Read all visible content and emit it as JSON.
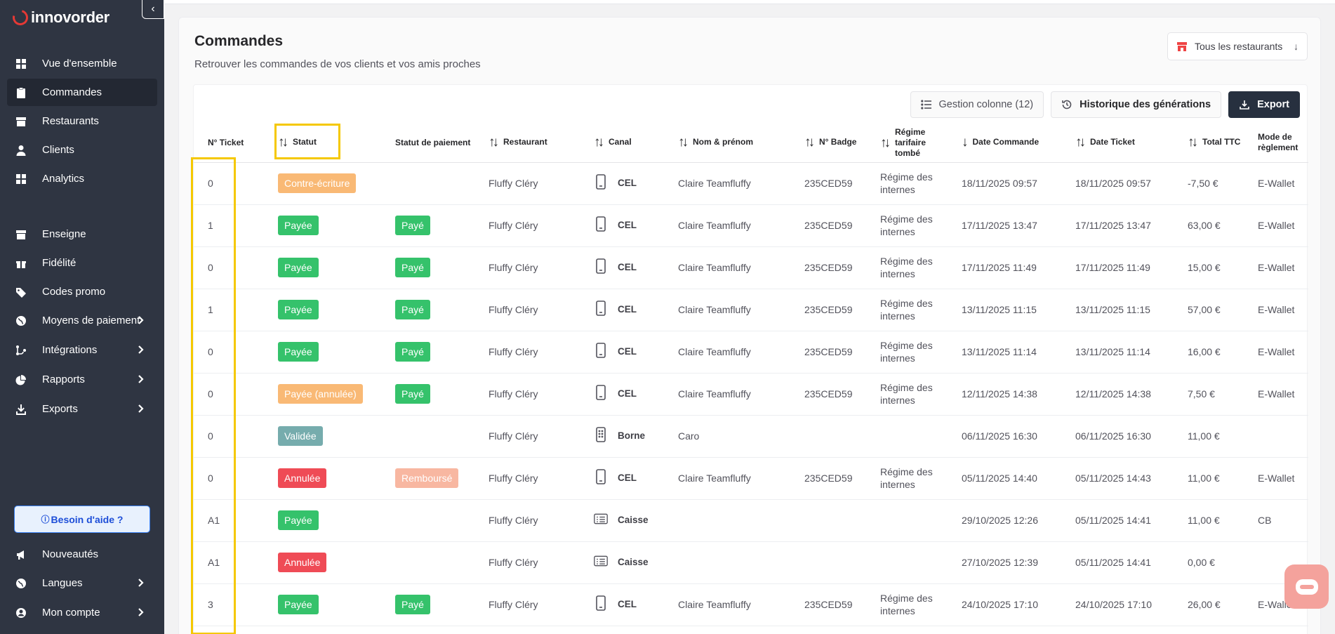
{
  "brand": {
    "name": "innovorder",
    "collapse_glyph": "‹"
  },
  "sidebar": {
    "items": [
      {
        "label": "Vue d'ensemble",
        "icon": "grid-icon",
        "active": false,
        "chevron": false
      },
      {
        "label": "Commandes",
        "icon": "clipboard-icon",
        "active": true,
        "chevron": false
      },
      {
        "label": "Restaurants",
        "icon": "store-icon",
        "active": false,
        "chevron": false
      },
      {
        "label": "Clients",
        "icon": "user-icon",
        "active": false,
        "chevron": false
      },
      {
        "label": "Analytics",
        "icon": "grid-icon",
        "active": false,
        "chevron": false
      },
      {
        "label": "Enseigne",
        "icon": "store-icon",
        "active": false,
        "chevron": false
      },
      {
        "label": "Fidélité",
        "icon": "gift-icon",
        "active": false,
        "chevron": false
      },
      {
        "label": "Codes promo",
        "icon": "tag-icon",
        "active": false,
        "chevron": false
      },
      {
        "label": "Moyens de paiement",
        "icon": "globe-icon",
        "active": false,
        "chevron": true
      },
      {
        "label": "Intégrations",
        "icon": "integration-icon",
        "active": false,
        "chevron": true
      },
      {
        "label": "Rapports",
        "icon": "pie-icon",
        "active": false,
        "chevron": true
      },
      {
        "label": "Exports",
        "icon": "download-icon",
        "active": false,
        "chevron": true
      }
    ],
    "help_label": "Besoin d'aide ?",
    "bottom_items": [
      {
        "label": "Nouveautés",
        "icon": "megaphone-icon",
        "chevron": false
      },
      {
        "label": "Langues",
        "icon": "globe-icon",
        "chevron": true
      },
      {
        "label": "Mon compte",
        "icon": "account-icon",
        "chevron": true
      }
    ]
  },
  "page": {
    "title": "Commandes",
    "subtitle": "Retrouver les commandes de vos clients et vos amis proches",
    "restaurant_filter": "Tous les restaurants"
  },
  "toolbar": {
    "columns_label": "Gestion colonne (12)",
    "history_label": "Historique des générations",
    "export_label": "Export"
  },
  "columns": [
    {
      "label": "N° Ticket",
      "sortable": false
    },
    {
      "label": "Statut",
      "sortable": true
    },
    {
      "label": "Statut de paiement",
      "sortable": false
    },
    {
      "label": "Restaurant",
      "sortable": true
    },
    {
      "label": "Canal",
      "sortable": true
    },
    {
      "label": "Nom & prénom",
      "sortable": true
    },
    {
      "label": "N° Badge",
      "sortable": true
    },
    {
      "label": "Régime tarifaire tombé",
      "sortable": true
    },
    {
      "label": "Date Commande",
      "sortable": "desc"
    },
    {
      "label": "Date Ticket",
      "sortable": true
    },
    {
      "label": "Total TTC",
      "sortable": true
    },
    {
      "label": "Mode de règlement",
      "sortable": false
    }
  ],
  "rows": [
    {
      "ticket": "0",
      "statut": "Contre-écriture",
      "statut_color": "orange",
      "paiement": "",
      "paiement_color": "",
      "restaurant": "Fluffy Cléry",
      "canal": "CEL",
      "canal_icon": "phone",
      "nom": "Claire Teamfluffy",
      "badge": "235CED59",
      "regime": "Régime des internes",
      "date_commande": "18/11/2025 09:57",
      "date_ticket": "18/11/2025 09:57",
      "total": "-7,50 €",
      "mode": "E-Wallet"
    },
    {
      "ticket": "1",
      "statut": "Payée",
      "statut_color": "green",
      "paiement": "Payé",
      "paiement_color": "green",
      "restaurant": "Fluffy Cléry",
      "canal": "CEL",
      "canal_icon": "phone",
      "nom": "Claire Teamfluffy",
      "badge": "235CED59",
      "regime": "Régime des internes",
      "date_commande": "17/11/2025 13:47",
      "date_ticket": "17/11/2025 13:47",
      "total": "63,00 €",
      "mode": "E-Wallet"
    },
    {
      "ticket": "0",
      "statut": "Payée",
      "statut_color": "green",
      "paiement": "Payé",
      "paiement_color": "green",
      "restaurant": "Fluffy Cléry",
      "canal": "CEL",
      "canal_icon": "phone",
      "nom": "Claire Teamfluffy",
      "badge": "235CED59",
      "regime": "Régime des internes",
      "date_commande": "17/11/2025 11:49",
      "date_ticket": "17/11/2025 11:49",
      "total": "15,00 €",
      "mode": "E-Wallet"
    },
    {
      "ticket": "1",
      "statut": "Payée",
      "statut_color": "green",
      "paiement": "Payé",
      "paiement_color": "green",
      "restaurant": "Fluffy Cléry",
      "canal": "CEL",
      "canal_icon": "phone",
      "nom": "Claire Teamfluffy",
      "badge": "235CED59",
      "regime": "Régime des internes",
      "date_commande": "13/11/2025 11:15",
      "date_ticket": "13/11/2025 11:15",
      "total": "57,00 €",
      "mode": "E-Wallet"
    },
    {
      "ticket": "0",
      "statut": "Payée",
      "statut_color": "green",
      "paiement": "Payé",
      "paiement_color": "green",
      "restaurant": "Fluffy Cléry",
      "canal": "CEL",
      "canal_icon": "phone",
      "nom": "Claire Teamfluffy",
      "badge": "235CED59",
      "regime": "Régime des internes",
      "date_commande": "13/11/2025 11:14",
      "date_ticket": "13/11/2025 11:14",
      "total": "16,00 €",
      "mode": "E-Wallet"
    },
    {
      "ticket": "0",
      "statut": "Payée (annulée)",
      "statut_color": "orange",
      "paiement": "Payé",
      "paiement_color": "green",
      "restaurant": "Fluffy Cléry",
      "canal": "CEL",
      "canal_icon": "phone",
      "nom": "Claire Teamfluffy",
      "badge": "235CED59",
      "regime": "Régime des internes",
      "date_commande": "12/11/2025 14:38",
      "date_ticket": "12/11/2025 14:38",
      "total": "7,50 €",
      "mode": "E-Wallet"
    },
    {
      "ticket": "0",
      "statut": "Validée",
      "statut_color": "teal",
      "paiement": "",
      "paiement_color": "",
      "restaurant": "Fluffy Cléry",
      "canal": "Borne",
      "canal_icon": "kiosk",
      "nom": "Caro",
      "badge": "",
      "regime": "",
      "date_commande": "06/11/2025 16:30",
      "date_ticket": "06/11/2025 16:30",
      "total": "11,00 €",
      "mode": ""
    },
    {
      "ticket": "0",
      "statut": "Annulée",
      "statut_color": "red",
      "paiement": "Remboursé",
      "paiement_color": "salmon",
      "restaurant": "Fluffy Cléry",
      "canal": "CEL",
      "canal_icon": "phone",
      "nom": "Claire Teamfluffy",
      "badge": "235CED59",
      "regime": "Régime des internes",
      "date_commande": "05/11/2025 14:40",
      "date_ticket": "05/11/2025 14:43",
      "total": "11,00 €",
      "mode": "E-Wallet"
    },
    {
      "ticket": "A1",
      "statut": "Payée",
      "statut_color": "green",
      "paiement": "",
      "paiement_color": "",
      "restaurant": "Fluffy Cléry",
      "canal": "Caisse",
      "canal_icon": "register",
      "nom": "",
      "badge": "",
      "regime": "",
      "date_commande": "29/10/2025 12:26",
      "date_ticket": "05/11/2025 14:41",
      "total": "11,00 €",
      "mode": "CB"
    },
    {
      "ticket": "A1",
      "statut": "Annulée",
      "statut_color": "red",
      "paiement": "",
      "paiement_color": "",
      "restaurant": "Fluffy Cléry",
      "canal": "Caisse",
      "canal_icon": "register",
      "nom": "",
      "badge": "",
      "regime": "",
      "date_commande": "27/10/2025 12:39",
      "date_ticket": "05/11/2025 14:41",
      "total": "0,00 €",
      "mode": ""
    },
    {
      "ticket": "3",
      "statut": "Payée",
      "statut_color": "green",
      "paiement": "Payé",
      "paiement_color": "green",
      "restaurant": "Fluffy Cléry",
      "canal": "CEL",
      "canal_icon": "phone",
      "nom": "Claire Teamfluffy",
      "badge": "235CED59",
      "regime": "Régime des internes",
      "date_commande": "24/10/2025 17:10",
      "date_ticket": "24/10/2025 17:10",
      "total": "26,00 €",
      "mode": "E-Wallet"
    }
  ],
  "colors": {
    "sidebar_bg": "#2f3542",
    "highlight": "#f5c800",
    "accent_dark": "#27303f"
  }
}
